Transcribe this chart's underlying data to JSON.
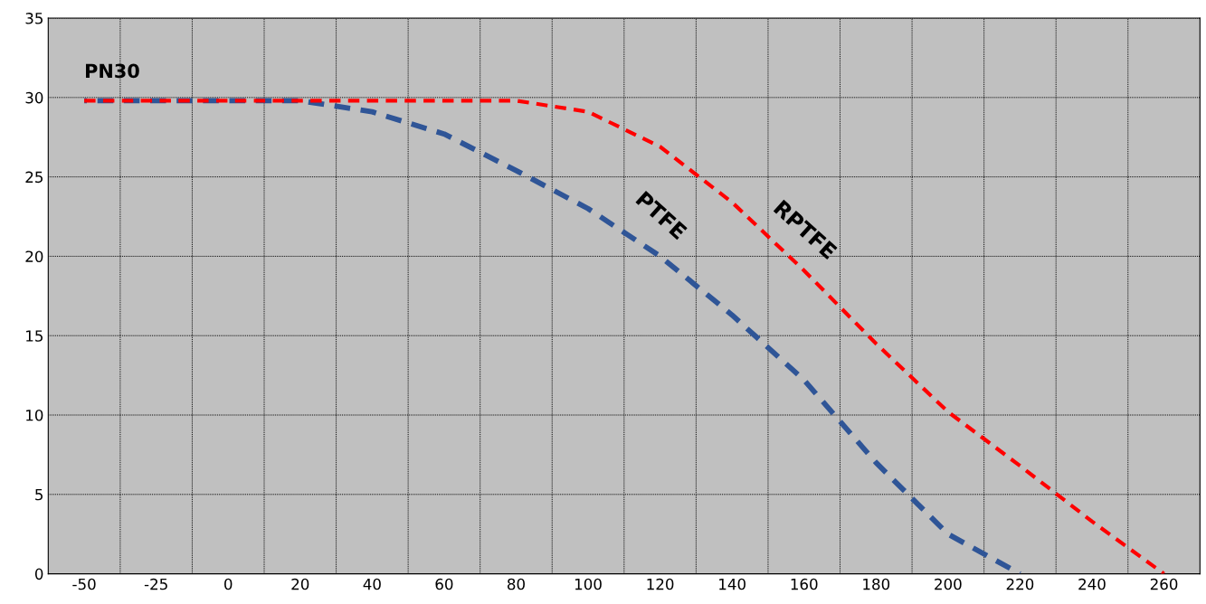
{
  "chart_data": {
    "type": "line",
    "categories": [
      "-50",
      "-25",
      "0",
      "20",
      "40",
      "60",
      "80",
      "100",
      "120",
      "140",
      "160",
      "180",
      "200",
      "220",
      "240",
      "260"
    ],
    "series": [
      {
        "name": "PTFE",
        "color": "#2f5597",
        "values": [
          29.8,
          29.8,
          29.8,
          29.8,
          29.1,
          27.7,
          25.4,
          23.0,
          20.0,
          16.3,
          12.2,
          7.0,
          2.5,
          0,
          null,
          null
        ]
      },
      {
        "name": "RPTFE",
        "color": "#ff0000",
        "values": [
          29.8,
          29.8,
          29.8,
          29.8,
          29.8,
          29.8,
          29.8,
          29.1,
          26.9,
          23.4,
          19.1,
          14.5,
          10.2,
          6.8,
          3.3,
          0
        ]
      }
    ],
    "annotations": [
      "PN30"
    ],
    "ylim": [
      0,
      35
    ],
    "yticks": [
      0,
      5,
      10,
      15,
      20,
      25,
      30,
      35
    ],
    "grid": true,
    "line_style": "dashed",
    "marker": "none",
    "legend": false
  }
}
